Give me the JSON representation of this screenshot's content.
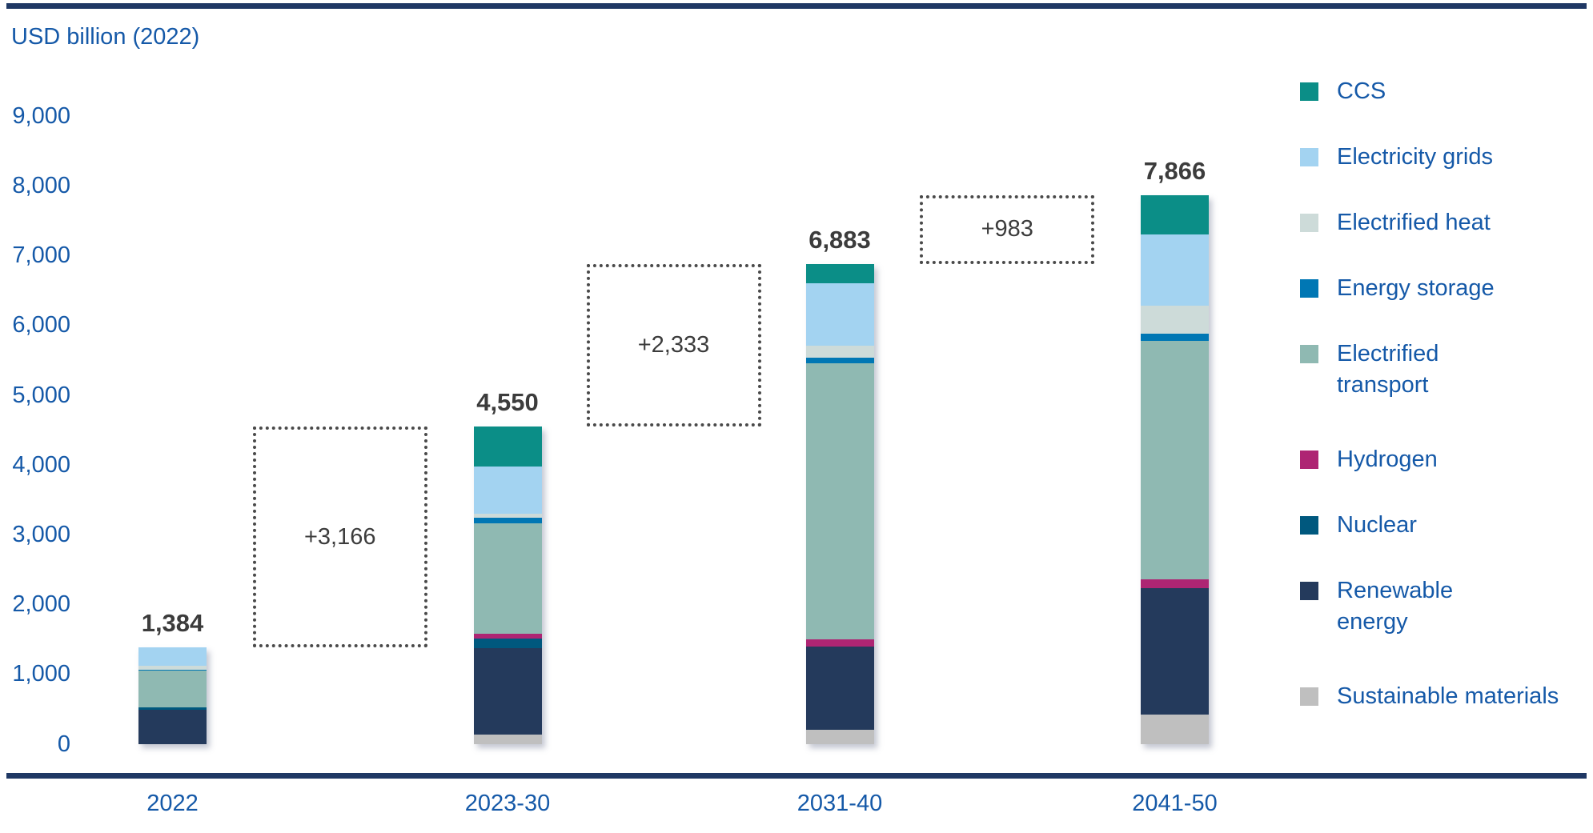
{
  "title": "USD billion (2022)",
  "colors": {
    "background": "#FFFFFF",
    "axis_rule_navy": "#1F3864",
    "text_blue": "#1559A8",
    "value_label_gray": "#3C3C3C",
    "dotted_border_gray": "#4A4A4A"
  },
  "chart_data": {
    "type": "bar",
    "stacked": true,
    "title": "USD billion (2022)",
    "ylabel": "USD billion (2022)",
    "xlabel": "",
    "categories": [
      "2022",
      "2023-30",
      "2031-40",
      "2041-50"
    ],
    "bar_totals": [
      1384,
      4550,
      6883,
      7866
    ],
    "bar_total_labels": [
      "1,384",
      "4,550",
      "6,883",
      "7,866"
    ],
    "increment_labels": [
      "+3,166",
      "+2,333",
      "+983"
    ],
    "ylim": [
      0,
      9000
    ],
    "ytick_step": 1000,
    "ytick_labels": [
      "0",
      "1,000",
      "2,000",
      "3,000",
      "4,000",
      "5,000",
      "6,000",
      "7,000",
      "8,000",
      "9,000"
    ],
    "grid": false,
    "legend_position": "right",
    "stack_order_note": "series listed top-of-stack first",
    "series": [
      {
        "name": "CCS",
        "color": "#0B8E87",
        "values": [
          0,
          571,
          279,
          561
        ]
      },
      {
        "name": "Electricity grids",
        "color": "#A3D3F1",
        "values": [
          258,
          679,
          889,
          1024
        ]
      },
      {
        "name": "Electrified heat",
        "color": "#CDDBD9",
        "values": [
          58,
          58,
          178,
          396
        ]
      },
      {
        "name": "Energy storage",
        "color": "#0077B4",
        "values": [
          16,
          78,
          76,
          104
        ]
      },
      {
        "name": "Electrified transport",
        "color": "#8FB9B2",
        "values": [
          530,
          1584,
          3962,
          3415
        ],
        "legend_lines": [
          "Electrified",
          "transport"
        ]
      },
      {
        "name": "Hydrogen",
        "color": "#AE2573",
        "values": [
          0,
          70,
          102,
          128
        ]
      },
      {
        "name": "Nuclear",
        "color": "#00587E",
        "values": [
          27,
          140,
          0,
          0
        ]
      },
      {
        "name": "Renewable energy",
        "color": "#243A5C",
        "values": [
          495,
          1234,
          1194,
          1811
        ],
        "legend_lines": [
          "Renewable",
          "energy"
        ]
      },
      {
        "name": "Sustainable materials",
        "color": "#BFBFBF",
        "values": [
          0,
          136,
          203,
          427
        ]
      }
    ]
  }
}
